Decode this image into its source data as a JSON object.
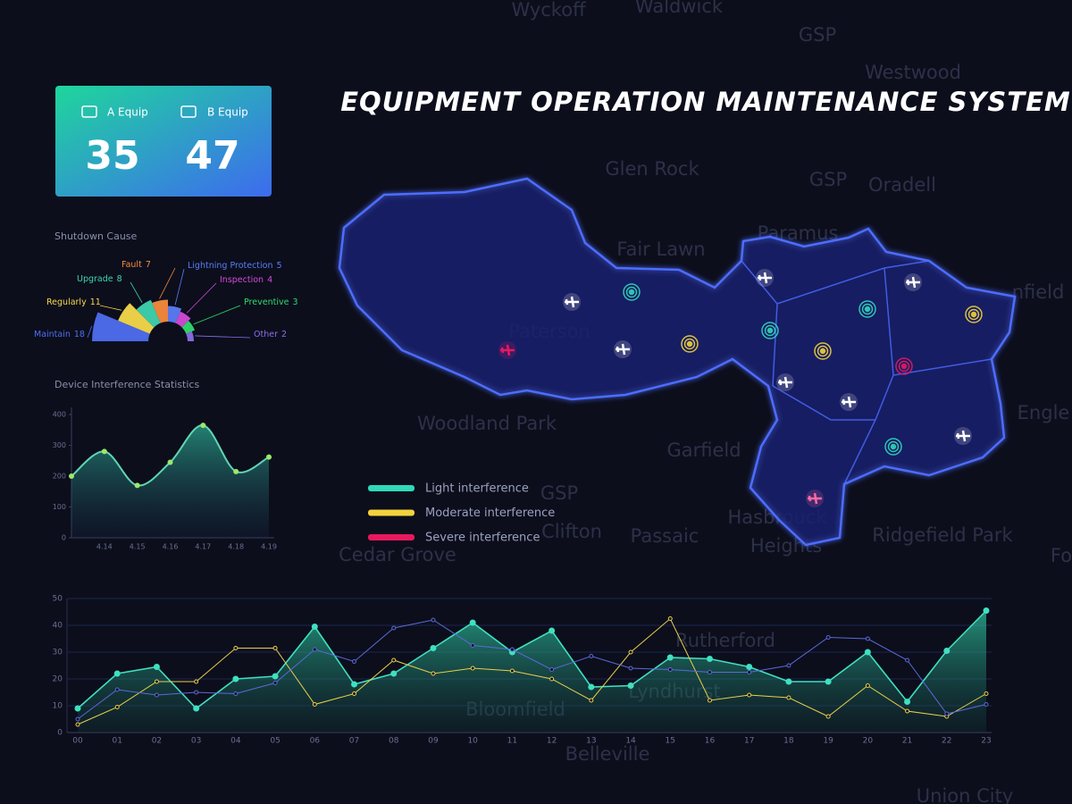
{
  "title": "EQUIPMENT OPERATION MAINTENANCE SYSTEM",
  "equipment": [
    {
      "label": "A Equip",
      "value": 35
    },
    {
      "label": "B Equip",
      "value": 47
    }
  ],
  "map": {
    "place_labels": [
      "Wyckoff",
      "Waldwick",
      "GSP",
      "Westwood",
      "Glen Rock",
      "GSP",
      "Oradell",
      "Paramus",
      "Fair Lawn",
      "nfield",
      "Paterson",
      "Woodland Park",
      "Engle",
      "Garfield",
      "GSP",
      "Clifton",
      "Passaic",
      "Hasbrouck",
      "Heights",
      "Ridgefield Park",
      "Cedar Grove",
      "Fo",
      "Rutherford",
      "Lyndhurst",
      "Bloomfield",
      "Belleville",
      "Union City"
    ],
    "legend": [
      {
        "label": "Light interference",
        "color": "#2fd9b9"
      },
      {
        "label": "Moderate interference",
        "color": "#f2d33c"
      },
      {
        "label": "Severe interference",
        "color": "#e8185f"
      }
    ]
  },
  "chart_data": [
    {
      "type": "rose",
      "title": "Shutdown Cause",
      "categories": [
        "Maintain",
        "Regularly",
        "Upgrade",
        "Fault",
        "Lightning Protection",
        "Inspection",
        "Preventive",
        "Other"
      ],
      "values": [
        18,
        11,
        8,
        7,
        5,
        4,
        3,
        2
      ],
      "colors": [
        "#4f6ef0",
        "#f5d94a",
        "#3fd4b0",
        "#f58b3c",
        "#5b7cf5",
        "#d34bd8",
        "#2fdc6a",
        "#8b6ee8"
      ]
    },
    {
      "type": "area",
      "title": "Device Interference Statistics",
      "categories": [
        null,
        "4.14",
        "4.15",
        "4.16",
        "4.17",
        "4.18",
        "4.19"
      ],
      "values": [
        200,
        280,
        170,
        245,
        365,
        215,
        262
      ],
      "ylim": [
        0,
        400
      ],
      "yticks": [
        0,
        100,
        200,
        300,
        400
      ],
      "color": "#5fd6b4"
    },
    {
      "type": "line",
      "categories": [
        "00",
        "01",
        "02",
        "03",
        "04",
        "05",
        "06",
        "07",
        "08",
        "09",
        "10",
        "11",
        "12",
        "13",
        "14",
        "15",
        "16",
        "17",
        "18",
        "19",
        "20",
        "21",
        "22",
        "23"
      ],
      "series": [
        {
          "color": "#3fe0c0",
          "fill": true,
          "values": [
            9,
            22,
            24.5,
            9,
            20,
            21,
            39.5,
            18,
            22,
            31.5,
            41,
            30,
            38,
            17,
            17.5,
            28,
            27.5,
            24.5,
            19,
            19,
            30,
            11.5,
            30.5,
            45.5
          ]
        },
        {
          "color": "#e8d04a",
          "values": [
            3,
            9.5,
            19,
            19,
            31.5,
            31.5,
            10.5,
            14.5,
            27,
            22,
            24,
            23,
            20,
            12,
            30,
            42.5,
            12,
            14,
            13,
            6,
            17.5,
            8,
            6,
            14.5
          ]
        },
        {
          "color": "#5a6ad8",
          "values": [
            5,
            16,
            14,
            15,
            14.5,
            18.5,
            31,
            26.5,
            39,
            42,
            32.5,
            31,
            23.5,
            28.5,
            24,
            23.5,
            22.5,
            22.5,
            25,
            35.5,
            35,
            27,
            7,
            10.5
          ]
        }
      ],
      "ylim": [
        0,
        50
      ],
      "yticks": [
        0,
        10,
        20,
        30,
        40,
        50
      ],
      "grid": true
    }
  ]
}
